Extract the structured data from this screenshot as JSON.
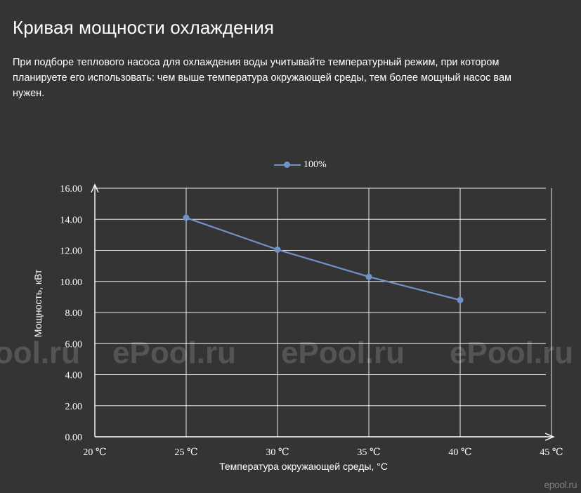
{
  "title": "Кривая мощности охлаждения",
  "description": "При подборе теплового насоса для охлаждения воды учитывайте температурный режим, при котором планируете его использовать: чем выше температура окружающей среды, тем более мощный насос вам нужен.",
  "watermark": "ePool.ru",
  "corner_logo": "epool.ru",
  "chart_data": {
    "type": "line",
    "x": [
      25,
      30,
      35,
      40
    ],
    "series": [
      {
        "name": "100%",
        "values": [
          14.1,
          12.05,
          10.3,
          8.8
        ],
        "color": "#6f93c9"
      }
    ],
    "xlabel": "Температура окружающей среды, °C",
    "ylabel": "Мощность, кВт",
    "xlim": [
      20,
      45
    ],
    "ylim": [
      0,
      16
    ],
    "x_ticks": [
      20,
      25,
      30,
      35,
      40,
      45
    ],
    "x_tick_labels": [
      "20 ℃",
      "25 ℃",
      "30 ℃",
      "35 ℃",
      "40 ℃",
      "45 ℃"
    ],
    "y_ticks": [
      0,
      2,
      4,
      6,
      8,
      10,
      12,
      14,
      16
    ],
    "y_tick_labels": [
      "0.00",
      "2.00",
      "4.00",
      "6.00",
      "8.00",
      "10.00",
      "12.00",
      "14.00",
      "16.00"
    ],
    "grid": true,
    "legend": "top-center",
    "grid_color": "#ffffff",
    "axis_color": "#ffffff"
  }
}
